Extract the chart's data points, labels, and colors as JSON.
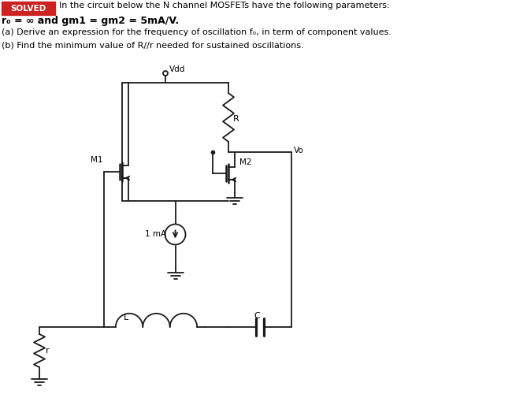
{
  "background_color": "#ffffff",
  "line_color": "#1a1a1a",
  "header_bg": "#cc2222",
  "header_text": "SOLVED",
  "title_line1": "In the circuit below the N channel MOSFETs have the following parameters:",
  "title_line2": "r₀ = ∞ and gm1 = gm2 = 5mA/V.",
  "title_line3": "(a) Derive an expression for the frequency of oscillation fₒ, in term of component values.",
  "title_line4": "(b) Find the minimum value of R//r needed for sustained oscillations.",
  "label_Vdd": "Vdd",
  "label_R": "R",
  "label_Vo": "Vo",
  "label_M1": "M1",
  "label_M2": "M2",
  "label_1mA": "1 mA",
  "label_L": "L",
  "label_C": "C",
  "label_r": "r"
}
